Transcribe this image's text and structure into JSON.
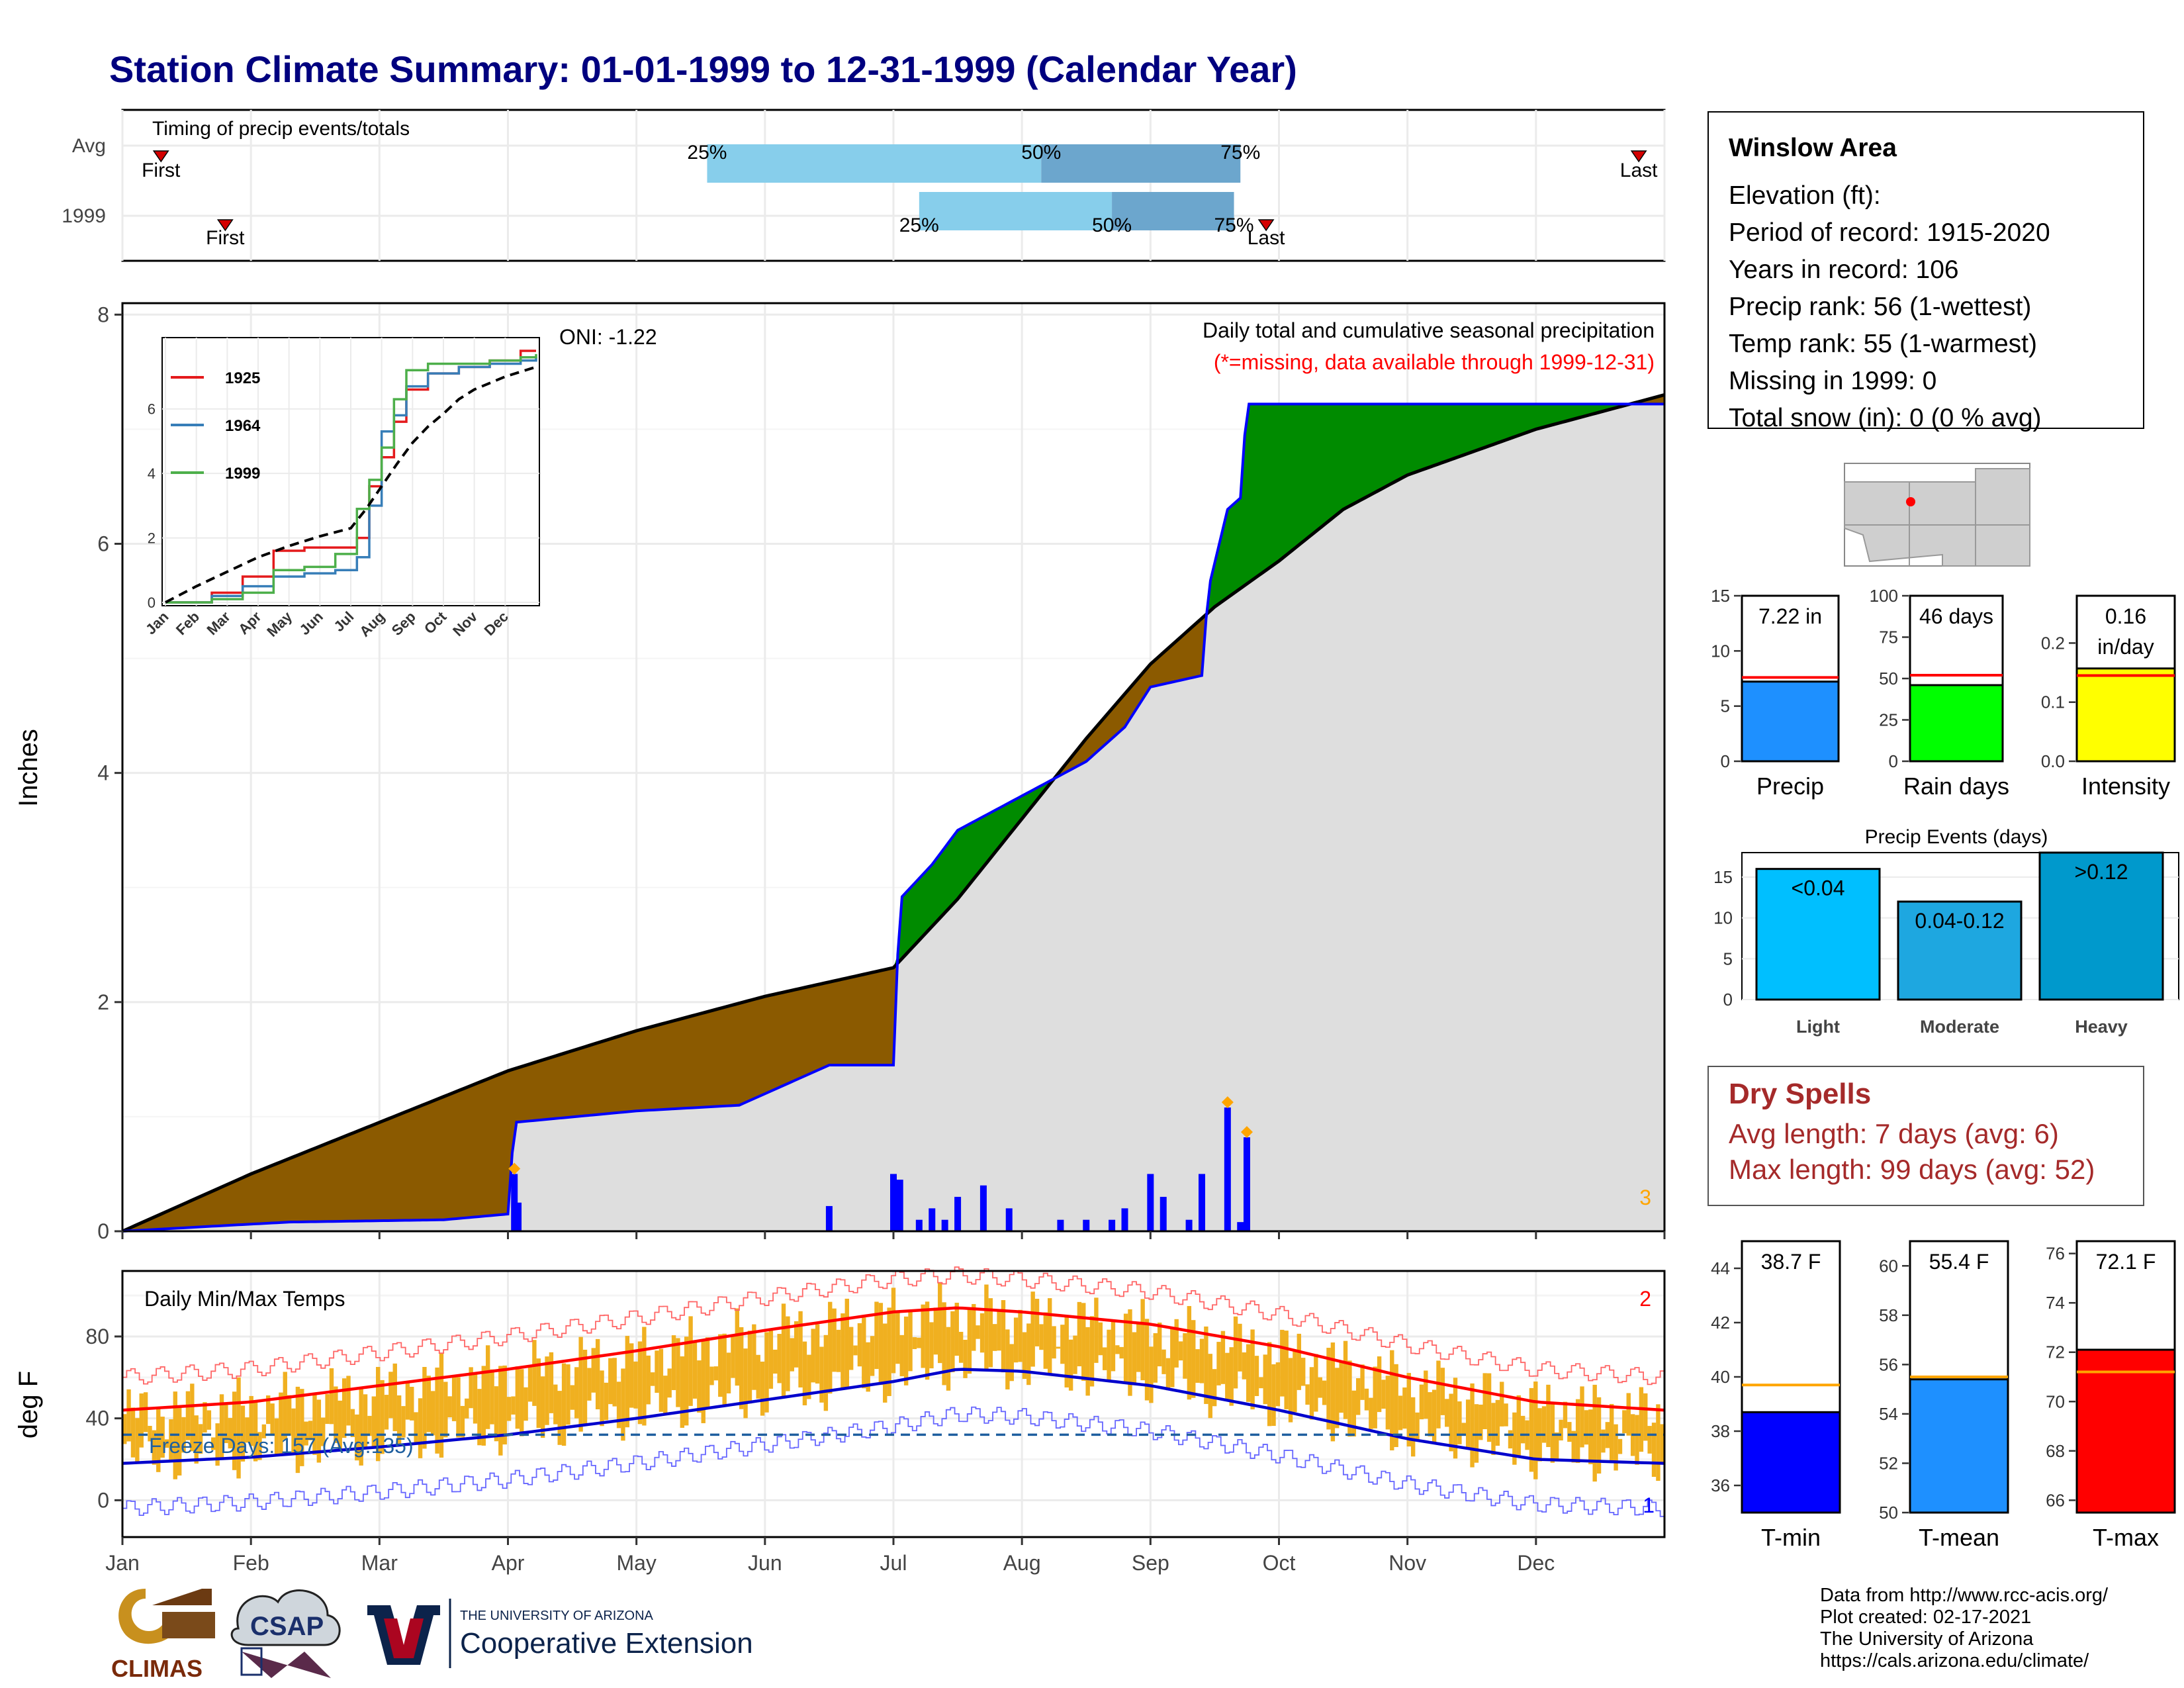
{
  "title": "Station Climate Summary: 01-01-1999 to 12-31-1999 (Calendar Year)",
  "timing_panel": {
    "label": "Timing of precip events/totals",
    "rows": [
      "Avg",
      "1999"
    ],
    "avg": {
      "first_month": 0.3,
      "q25_month": 4.55,
      "q50_month": 7.15,
      "q75_month": 8.7,
      "last_month": 11.8
    },
    "y1999": {
      "first_month": 0.8,
      "q25_month": 6.2,
      "q50_month": 7.7,
      "q75_month": 8.65,
      "last_month": 8.9
    },
    "labels": {
      "first": "First",
      "last": "Last",
      "q25": "25%",
      "q50": "50%",
      "q75": "75%"
    }
  },
  "station": {
    "name": "Winslow Area",
    "elevation": "Elevation (ft):",
    "period": "Period of record: 1915-2020",
    "years": "Years in record: 106",
    "precip_rank": "Precip rank: 56 (1-wettest)",
    "temp_rank": "Temp rank: 55 (1-warmest)",
    "missing": "Missing in 1999: 0",
    "snow": "Total snow (in): 0 (0 % avg)"
  },
  "precip_panel": {
    "annotation_title": "Daily total and cumulative seasonal precipitation",
    "annotation_missing": "(*=missing, data available through 1999-12-31)",
    "oni": "ONI: -1.22",
    "ylabel": "Inches",
    "corner_label": "3",
    "y_ticks": [
      "0",
      "2",
      "4",
      "6",
      "8"
    ]
  },
  "temp_panel": {
    "label": "Daily Min/Max Temps",
    "ylabel": "deg F",
    "freeze": "Freeze Days: 157 (Avg:135)",
    "corner_top": "2",
    "corner_bottom": "1",
    "y_ticks": [
      "0",
      "40",
      "80"
    ]
  },
  "months": [
    "Jan",
    "Feb",
    "Mar",
    "Apr",
    "May",
    "Jun",
    "Jul",
    "Aug",
    "Sep",
    "Oct",
    "Nov",
    "Dec"
  ],
  "inset": {
    "series_names": [
      "1925",
      "1964",
      "1999"
    ],
    "series_colors": [
      "#e41a1c",
      "#377eb8",
      "#4daf4a"
    ],
    "y_ticks": [
      "0",
      "2",
      "4",
      "6"
    ]
  },
  "bars": {
    "precip": {
      "label": "Precip",
      "value_text": "7.22 in",
      "value": 7.22,
      "avg": 7.6,
      "max": 15,
      "ticks": [
        "0",
        "5",
        "10",
        "15"
      ],
      "color": "#1e90ff"
    },
    "rain": {
      "label": "Rain days",
      "value_text": "46 days",
      "value": 46,
      "avg": 52,
      "max": 100,
      "ticks": [
        "0",
        "25",
        "50",
        "75",
        "100"
      ],
      "color": "#00ff00"
    },
    "intensity": {
      "label": "Intensity",
      "value_text": "0.16",
      "value_text2": "in/day",
      "value": 0.157,
      "avg": 0.145,
      "max": 0.28,
      "ticks": [
        "0.0",
        "0.1",
        "0.2"
      ],
      "color": "#ffff00"
    }
  },
  "events": {
    "title": "Precip Events (days)",
    "ticks": [
      "0",
      "5",
      "10",
      "15"
    ],
    "items": [
      {
        "label": "Light",
        "range": "<0.04",
        "value": 16,
        "color": "#00bfff"
      },
      {
        "label": "Moderate",
        "range": "0.04-0.12",
        "value": 12,
        "color": "#1ea7e0"
      },
      {
        "label": "Heavy",
        "range": ">0.12",
        "value": 18,
        "color": "#0099cc"
      }
    ]
  },
  "dry_spells": {
    "title": "Dry Spells",
    "avg": "Avg length: 7 days (avg: 6)",
    "max": "Max length: 99 days (avg: 52)"
  },
  "temps": {
    "tmin": {
      "label": "T-min",
      "value_text": "38.7 F",
      "value": 38.7,
      "avg": 39.7,
      "min": 35,
      "max": 45,
      "ticks": [
        "36",
        "38",
        "40",
        "42",
        "44"
      ],
      "color": "#0000ff"
    },
    "tmean": {
      "label": "T-mean",
      "value_text": "55.4 F",
      "value": 55.4,
      "avg": 55.5,
      "min": 50,
      "max": 61,
      "ticks": [
        "50",
        "52",
        "54",
        "56",
        "58",
        "60"
      ],
      "color": "#1e90ff"
    },
    "tmax": {
      "label": "T-max",
      "value_text": "72.1 F",
      "value": 72.1,
      "avg": 71.2,
      "min": 65.5,
      "max": 76.5,
      "ticks": [
        "66",
        "68",
        "70",
        "72",
        "74",
        "76"
      ],
      "color": "#ff0000"
    }
  },
  "credits": [
    "Data from http://www.rcc-acis.org/",
    "Plot created: 02-17-2021",
    "The University of Arizona",
    "https://cals.arizona.edu/climate/"
  ],
  "logos": {
    "climas": "CLIMAS",
    "csap": "CSAP",
    "ua_small": "THE UNIVERSITY OF ARIZONA",
    "ua_big": "Cooperative Extension"
  },
  "chart_data": [
    {
      "type": "area",
      "title": "Daily total and cumulative seasonal precipitation",
      "ylabel": "Inches",
      "ylim": [
        0,
        8.1
      ],
      "x_units": "month index (0=Jan 1, 12=Dec 31)",
      "avg_cumulative": {
        "x": [
          0,
          1,
          2,
          3,
          4,
          5,
          6,
          6.5,
          7,
          7.5,
          8,
          8.5,
          9,
          9.5,
          10,
          11,
          12
        ],
        "y": [
          0,
          0.5,
          0.95,
          1.4,
          1.75,
          2.05,
          2.3,
          2.9,
          3.6,
          4.3,
          4.95,
          5.45,
          5.85,
          6.3,
          6.6,
          7.0,
          7.3
        ]
      },
      "y1999_cumulative": {
        "x": [
          0,
          0.8,
          1.3,
          2.5,
          3.0,
          3.05,
          4.0,
          4.8,
          5.5,
          6.0,
          6.05,
          6.3,
          6.5,
          7.0,
          7.5,
          7.8,
          8.0,
          8.4,
          8.45,
          8.6,
          8.7,
          8.75,
          12.0
        ],
        "y": [
          0,
          0.05,
          0.08,
          0.1,
          0.15,
          0.95,
          1.05,
          1.1,
          1.45,
          1.45,
          2.9,
          3.2,
          3.5,
          3.8,
          4.1,
          4.4,
          4.75,
          4.85,
          5.6,
          6.3,
          6.4,
          7.22,
          7.22
        ]
      },
      "daily_bars": {
        "x": [
          3.05,
          3.08,
          5.5,
          6.0,
          6.05,
          6.2,
          6.3,
          6.4,
          6.5,
          6.7,
          6.9,
          7.3,
          7.5,
          7.7,
          7.8,
          8.0,
          8.1,
          8.3,
          8.4,
          8.6,
          8.7,
          8.75
        ],
        "y": [
          0.5,
          0.25,
          0.22,
          0.5,
          0.45,
          0.1,
          0.2,
          0.1,
          0.3,
          0.4,
          0.2,
          0.1,
          0.1,
          0.1,
          0.2,
          0.5,
          0.3,
          0.1,
          0.5,
          1.08,
          0.08,
          0.82
        ]
      },
      "max_markers": {
        "x": [
          3.05,
          8.6,
          8.75
        ],
        "y": [
          0.5,
          1.08,
          0.82
        ]
      },
      "series": [
        {
          "name": "1925",
          "x": [
            0,
            1.5,
            2.5,
            3.5,
            4.5,
            5.5,
            6.2,
            6.6,
            7.0,
            7.4,
            7.8,
            8.5,
            9.5,
            10.5,
            11.5,
            12
          ],
          "y": [
            0,
            0.3,
            0.8,
            1.6,
            1.7,
            1.7,
            2.0,
            3.6,
            4.5,
            5.6,
            6.6,
            7.1,
            7.3,
            7.5,
            7.8,
            7.8
          ]
        },
        {
          "name": "1964",
          "x": [
            0,
            1.5,
            2.5,
            3.5,
            4.5,
            5.5,
            6.2,
            6.6,
            7.0,
            7.4,
            7.8,
            8.5,
            9.5,
            10.5,
            11.5,
            12
          ],
          "y": [
            0,
            0.2,
            0.5,
            0.8,
            0.9,
            1.0,
            1.4,
            3.0,
            5.3,
            5.8,
            6.7,
            7.1,
            7.3,
            7.4,
            7.5,
            7.6
          ]
        },
        {
          "name": "1999",
          "x": [
            0,
            1.5,
            2.5,
            3.5,
            4.5,
            5.5,
            6.2,
            6.6,
            7.0,
            7.4,
            7.8,
            8.5,
            9.5,
            10.5,
            11.5,
            12
          ],
          "y": [
            0,
            0.1,
            0.3,
            1.0,
            1.1,
            1.5,
            2.9,
            3.8,
            4.8,
            6.3,
            7.2,
            7.4,
            7.4,
            7.5,
            7.6,
            7.7
          ]
        }
      ]
    },
    {
      "type": "line",
      "title": "Daily Min/Max Temps",
      "ylabel": "deg F",
      "ylim": [
        -18,
        112
      ],
      "freeze_line": 32,
      "avg_max": {
        "x": [
          0,
          1,
          2,
          3,
          4,
          5,
          6,
          6.5,
          7,
          8,
          9,
          10,
          11,
          12
        ],
        "y": [
          44,
          48,
          56,
          64,
          73,
          83,
          92,
          94,
          92,
          86,
          75,
          60,
          48,
          44
        ]
      },
      "avg_min": {
        "x": [
          0,
          1,
          2,
          3,
          4,
          5,
          6,
          6.5,
          7,
          8,
          9,
          10,
          11,
          12
        ],
        "y": [
          18,
          21,
          26,
          32,
          40,
          49,
          58,
          64,
          63,
          56,
          44,
          30,
          20,
          18
        ]
      }
    },
    {
      "type": "bar",
      "title": "Precip",
      "categories": [
        "Precip"
      ],
      "values": [
        7.22
      ],
      "ylim": [
        0,
        15
      ]
    },
    {
      "type": "bar",
      "title": "Rain days",
      "categories": [
        "Rain days"
      ],
      "values": [
        46
      ],
      "ylim": [
        0,
        100
      ]
    },
    {
      "type": "bar",
      "title": "Intensity",
      "categories": [
        "Intensity"
      ],
      "values": [
        0.16
      ],
      "ylim": [
        0,
        0.28
      ]
    },
    {
      "type": "bar",
      "title": "Precip Events (days)",
      "categories": [
        "Light",
        "Moderate",
        "Heavy"
      ],
      "values": [
        16,
        12,
        18
      ],
      "ylim": [
        0,
        18
      ]
    },
    {
      "type": "bar",
      "title": "T-min",
      "categories": [
        "T-min"
      ],
      "values": [
        38.7
      ],
      "ylim": [
        35,
        45
      ]
    },
    {
      "type": "bar",
      "title": "T-mean",
      "categories": [
        "T-mean"
      ],
      "values": [
        55.4
      ],
      "ylim": [
        50,
        61
      ]
    },
    {
      "type": "bar",
      "title": "T-max",
      "categories": [
        "T-max"
      ],
      "values": [
        72.1
      ],
      "ylim": [
        65.5,
        76.5
      ]
    }
  ]
}
